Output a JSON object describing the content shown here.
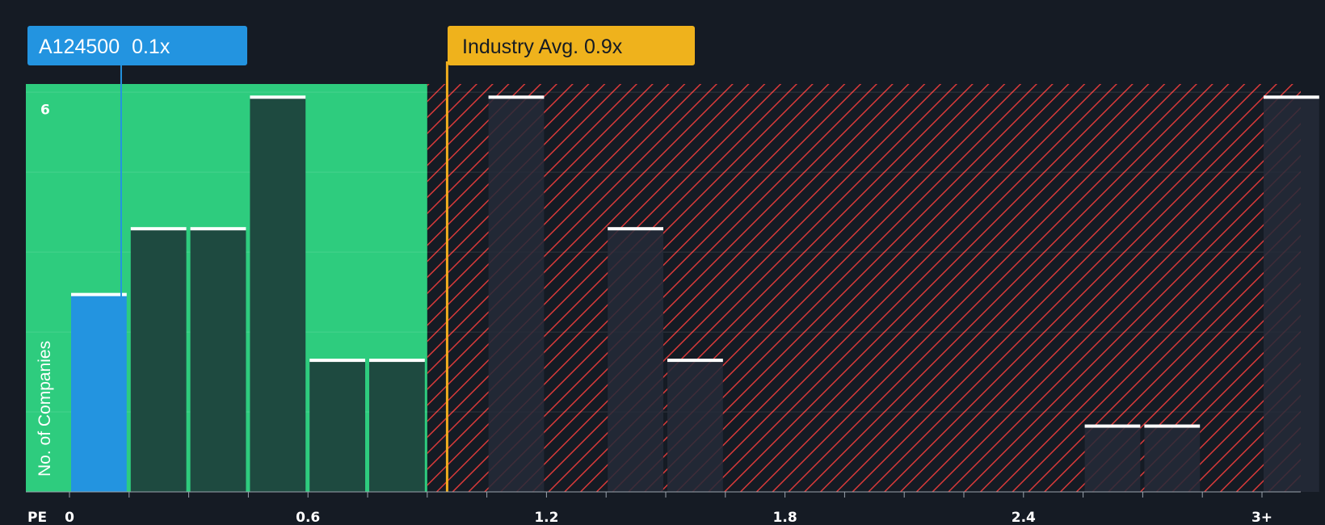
{
  "colors": {
    "background": "#151b24",
    "fair_zone": "#2ecc7e",
    "overvalued_zone": "#d83a3a",
    "company_bar": "#2394e0",
    "fair_bar": "#1e4a40",
    "overvalued_bar": "#252a38",
    "industry_line": "#f0ad1e",
    "industry_label_bg": "#efb21c",
    "company_label_bg": "#2394e0"
  },
  "company_label": {
    "ticker": "A124500",
    "value": "0.1x"
  },
  "industry_label": {
    "text": "Industry Avg. 0.9x"
  },
  "chart_data": {
    "type": "bar",
    "title": "",
    "xlabel": "PE",
    "ylabel": "No. of Companies",
    "x_ticks": [
      "0",
      "0.6",
      "1.2",
      "1.8",
      "2.4",
      "3+"
    ],
    "y_ticks": [
      "6"
    ],
    "xlim": [
      0,
      3.07
    ],
    "ylim": [
      0,
      6.2
    ],
    "bin_width": 0.15,
    "bins": [
      {
        "x": 0.0,
        "count": 3,
        "group": "company"
      },
      {
        "x": 0.15,
        "count": 4,
        "group": "fair"
      },
      {
        "x": 0.3,
        "count": 4,
        "group": "fair"
      },
      {
        "x": 0.45,
        "count": 6,
        "group": "fair"
      },
      {
        "x": 0.6,
        "count": 2,
        "group": "fair"
      },
      {
        "x": 0.75,
        "count": 2,
        "group": "fair"
      },
      {
        "x": 1.05,
        "count": 6,
        "group": "overvalued"
      },
      {
        "x": 1.35,
        "count": 4,
        "group": "overvalued"
      },
      {
        "x": 1.5,
        "count": 2,
        "group": "overvalued"
      },
      {
        "x": 2.55,
        "count": 1,
        "group": "overvalued"
      },
      {
        "x": 2.7,
        "count": 1,
        "group": "overvalued"
      },
      {
        "x": 3.0,
        "count": 6,
        "group": "overvalued"
      }
    ],
    "company_value": 0.13,
    "industry_avg": 0.95,
    "fair_zone_end": 0.9,
    "grid": true
  }
}
